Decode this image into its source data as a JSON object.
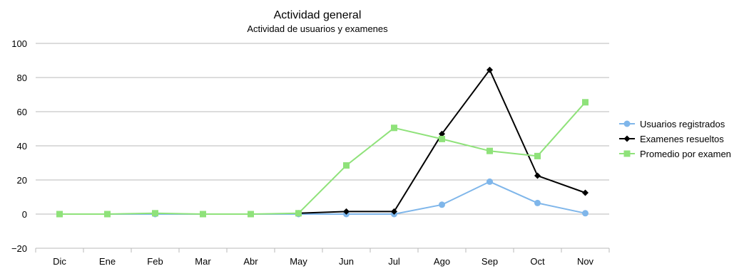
{
  "chart_data": {
    "type": "line",
    "title": "Actividad general",
    "subtitle": "Actividad de usuarios y examenes",
    "categories": [
      "Dic",
      "Ene",
      "Feb",
      "Mar",
      "Abr",
      "May",
      "Jun",
      "Jul",
      "Ago",
      "Sep",
      "Oct",
      "Nov"
    ],
    "ylim": [
      -20,
      100
    ],
    "yticks": [
      -20,
      0,
      20,
      40,
      60,
      80,
      100
    ],
    "ytick_labels": [
      "−20",
      "0",
      "20",
      "40",
      "60",
      "80",
      "100"
    ],
    "grid": true,
    "legend_position": "right",
    "series": [
      {
        "name": "Usuarios registrados",
        "color": "#7fb6ea",
        "marker": "circle",
        "values": [
          0,
          0,
          0,
          0,
          0,
          0,
          0,
          0,
          5.5,
          19,
          6.5,
          0.5
        ]
      },
      {
        "name": "Examenes resueltos",
        "color": "#000000",
        "marker": "diamond",
        "values": [
          null,
          null,
          null,
          null,
          null,
          0.5,
          1.5,
          1.5,
          47,
          84.5,
          22.5,
          12.5
        ]
      },
      {
        "name": "Promedio por examen",
        "color": "#8fe27a",
        "marker": "square",
        "values": [
          0,
          0,
          0.5,
          0,
          0,
          0.5,
          28.5,
          50.5,
          44,
          37,
          34,
          65.5
        ]
      }
    ]
  }
}
